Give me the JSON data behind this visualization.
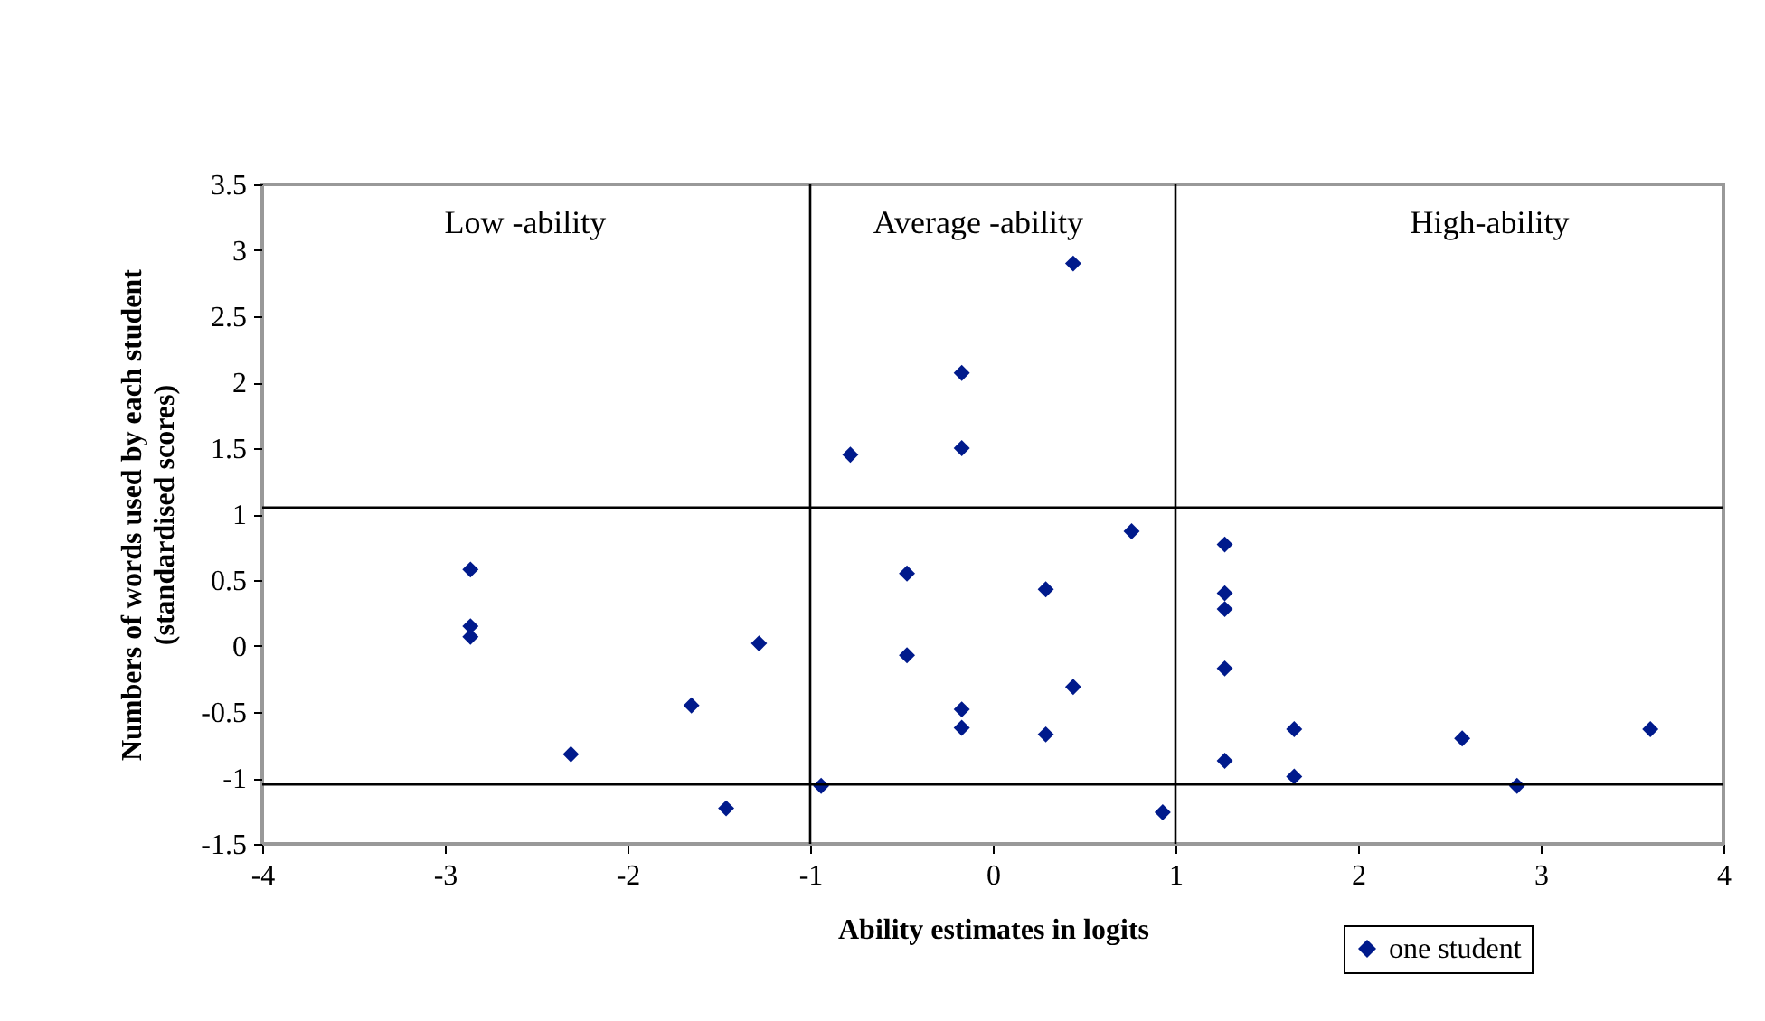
{
  "chart_data": {
    "type": "scatter",
    "xlabel": "Ability estimates in logits",
    "ylabel": "Numbers of words used by each student\n(standardised scores)",
    "xlim": [
      -4,
      4
    ],
    "xticks": [
      -4,
      -3,
      -2,
      -1,
      0,
      1,
      2,
      3,
      4
    ],
    "ylim": [
      -1.5,
      3.5
    ],
    "yticks": [
      -1.5,
      -1,
      -0.5,
      0,
      0.5,
      1,
      1.5,
      2,
      2.5,
      3,
      3.5
    ],
    "grid": false,
    "marker": "diamond",
    "legend": "bottom right",
    "series": [
      {
        "name": "one student",
        "color": "#001a8c",
        "x": [
          -2.86,
          -2.86,
          -2.86,
          -2.31,
          -1.65,
          -1.46,
          -1.28,
          -0.94,
          -0.78,
          -0.47,
          -0.47,
          -0.17,
          -0.17,
          -0.17,
          -0.17,
          0.44,
          0.76,
          0.29,
          1.27,
          1.27,
          1.27,
          1.27,
          0.44,
          0.29,
          1.65,
          2.57,
          3.6,
          1.27,
          1.65,
          2.87,
          0.93
        ],
        "values": [
          0.58,
          0.15,
          0.07,
          -0.82,
          -0.45,
          -1.23,
          0.02,
          -1.06,
          1.45,
          0.55,
          -0.07,
          2.07,
          1.5,
          -0.48,
          -0.62,
          2.9,
          0.87,
          0.43,
          0.77,
          0.4,
          0.28,
          -0.17,
          -0.31,
          -0.67,
          -0.63,
          -0.7,
          -0.63,
          -0.87,
          -0.99,
          -1.06,
          -1.26
        ]
      }
    ],
    "ref_lines": [
      {
        "axis": "x",
        "value": -1,
        "label": null
      },
      {
        "axis": "x",
        "value": 1,
        "label": null
      },
      {
        "axis": "y",
        "value": 1.05,
        "label": null
      },
      {
        "axis": "y",
        "value": -1.05,
        "label": null
      }
    ],
    "annotations": [
      "Low -ability",
      "Average -ability",
      "High-ability"
    ]
  }
}
